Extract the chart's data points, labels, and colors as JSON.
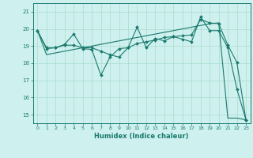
{
  "xlabel": "Humidex (Indice chaleur)",
  "x": [
    0,
    1,
    2,
    3,
    4,
    5,
    6,
    7,
    8,
    9,
    10,
    11,
    12,
    13,
    14,
    15,
    16,
    17,
    18,
    19,
    20,
    21,
    22,
    23
  ],
  "line1": [
    19.9,
    18.9,
    18.9,
    19.1,
    19.7,
    18.85,
    18.8,
    17.3,
    18.35,
    18.85,
    18.9,
    20.1,
    18.9,
    19.45,
    19.3,
    19.55,
    19.4,
    19.25,
    20.7,
    19.9,
    19.9,
    18.9,
    16.5,
    14.7
  ],
  "line2": [
    19.9,
    18.85,
    18.9,
    19.05,
    19.05,
    18.9,
    18.9,
    18.7,
    18.5,
    18.35,
    18.9,
    19.15,
    19.25,
    19.35,
    19.5,
    19.55,
    19.6,
    19.65,
    20.55,
    20.35,
    20.3,
    19.05,
    18.05,
    14.7
  ],
  "line3": [
    19.9,
    18.5,
    18.6,
    18.7,
    18.8,
    18.9,
    19.0,
    19.1,
    19.2,
    19.3,
    19.4,
    19.5,
    19.6,
    19.7,
    19.8,
    19.9,
    20.0,
    20.1,
    20.2,
    20.3,
    20.35,
    14.8,
    14.8,
    14.7
  ],
  "xlim": [
    -0.5,
    23.5
  ],
  "ylim": [
    14.5,
    21.5
  ],
  "yticks": [
    15,
    16,
    17,
    18,
    19,
    20,
    21
  ],
  "xticks": [
    0,
    1,
    2,
    3,
    4,
    5,
    6,
    7,
    8,
    9,
    10,
    11,
    12,
    13,
    14,
    15,
    16,
    17,
    18,
    19,
    20,
    21,
    22,
    23
  ],
  "line_color": "#1a7a6e",
  "bg_color": "#cef0ee",
  "grid_color": "#aaddcc",
  "markersize": 2.0,
  "linewidth": 0.8
}
